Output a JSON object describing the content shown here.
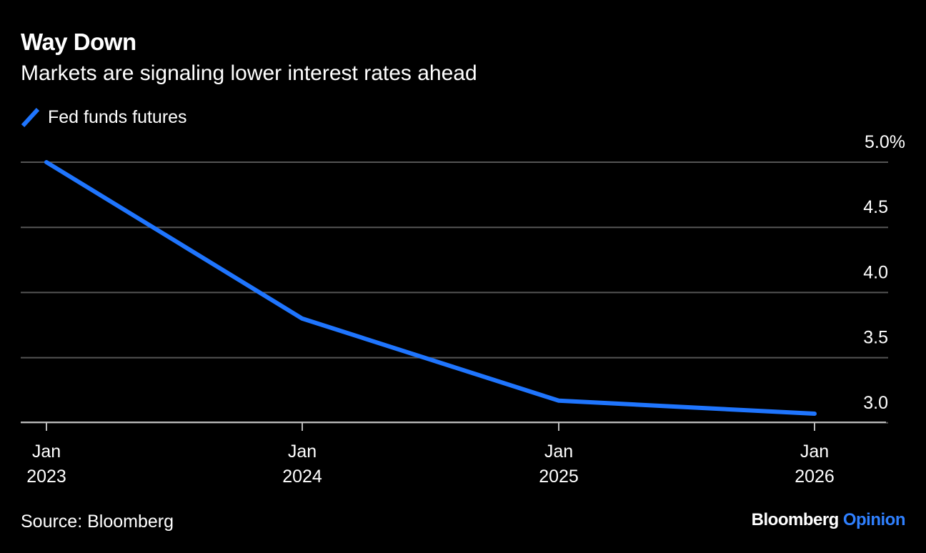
{
  "header": {
    "title": "Way Down",
    "subtitle": "Markets are signaling lower interest rates ahead"
  },
  "legend": {
    "label": "Fed funds futures",
    "color": "#1f75fe"
  },
  "colors": {
    "background": "#000000",
    "text": "#ffffff",
    "gridline": "#555555",
    "axis": "#bbbbbb",
    "series": "#1f75fe",
    "brand_accent": "#2f80ff"
  },
  "footer": {
    "source": "Source: Bloomberg",
    "brand_main": "Bloomberg",
    "brand_accent": "Opinion"
  },
  "chart_data": {
    "type": "line",
    "title": "Way Down",
    "subtitle": "Markets are signaling lower interest rates ahead",
    "xlabel": "",
    "ylabel": "",
    "x_ticks": [
      {
        "month": "Jan",
        "year": "2023",
        "x": "2023-01"
      },
      {
        "month": "Jan",
        "year": "2024",
        "x": "2024-01"
      },
      {
        "month": "Jan",
        "year": "2025",
        "x": "2025-01"
      },
      {
        "month": "Jan",
        "year": "2026",
        "x": "2026-01"
      }
    ],
    "y_ticks": [
      "5.0%",
      "4.5",
      "4.0",
      "3.5",
      "3.0"
    ],
    "ylim": [
      2.92,
      5.0
    ],
    "y_axis_side": "right",
    "grid": true,
    "legend_position": "top-left",
    "series": [
      {
        "name": "Fed funds futures",
        "color": "#1f75fe",
        "points": [
          {
            "x": "2023-01",
            "y": 5.0
          },
          {
            "x": "2024-01",
            "y": 3.8
          },
          {
            "x": "2025-01",
            "y": 3.17
          },
          {
            "x": "2026-01",
            "y": 3.07
          }
        ]
      }
    ]
  }
}
